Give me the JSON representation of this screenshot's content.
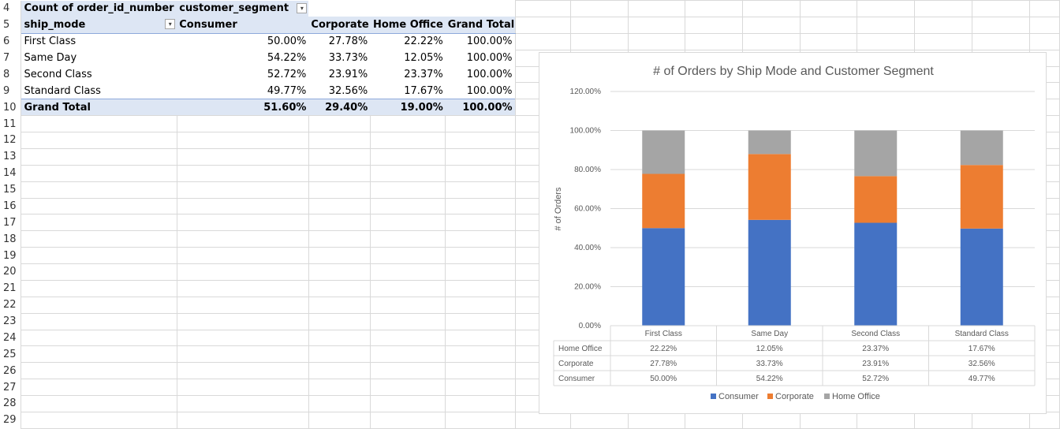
{
  "sheet": {
    "row_numbers": [
      "4",
      "5",
      "6",
      "7",
      "8",
      "9",
      "10",
      "11",
      "12",
      "13",
      "14",
      "15",
      "16",
      "17",
      "18",
      "19",
      "20",
      "21",
      "22",
      "23",
      "24",
      "25",
      "26",
      "27",
      "28",
      "29"
    ]
  },
  "pivot": {
    "values_field": "Count of order_id_number",
    "column_field": "customer_segment",
    "row_field": "ship_mode",
    "columns": [
      "Consumer",
      "Corporate",
      "Home Office",
      "Grand Total"
    ],
    "rows": [
      {
        "label": "First Class",
        "values": [
          "50.00%",
          "27.78%",
          "22.22%",
          "100.00%"
        ]
      },
      {
        "label": "Same Day",
        "values": [
          "54.22%",
          "33.73%",
          "12.05%",
          "100.00%"
        ]
      },
      {
        "label": "Second Class",
        "values": [
          "52.72%",
          "23.91%",
          "23.37%",
          "100.00%"
        ]
      },
      {
        "label": "Standard Class",
        "values": [
          "49.77%",
          "32.56%",
          "17.67%",
          "100.00%"
        ]
      }
    ],
    "total": {
      "label": "Grand Total",
      "values": [
        "51.60%",
        "29.40%",
        "19.00%",
        "100.00%"
      ]
    }
  },
  "chart_data": {
    "type": "bar",
    "stacked": true,
    "title": "# of Orders by Ship Mode and Customer Segment",
    "ylabel": "# of Orders",
    "xlabel": "",
    "ylim": [
      0,
      120
    ],
    "yticks": [
      "0.00%",
      "20.00%",
      "40.00%",
      "60.00%",
      "80.00%",
      "100.00%",
      "120.00%"
    ],
    "categories": [
      "First Class",
      "Same Day",
      "Second Class",
      "Standard Class"
    ],
    "series": [
      {
        "name": "Consumer",
        "color": "#4472c4",
        "values": [
          50.0,
          54.22,
          52.72,
          49.77
        ],
        "labels": [
          "50.00%",
          "54.22%",
          "52.72%",
          "49.77%"
        ]
      },
      {
        "name": "Corporate",
        "color": "#ed7d31",
        "values": [
          27.78,
          33.73,
          23.91,
          32.56
        ],
        "labels": [
          "27.78%",
          "33.73%",
          "23.91%",
          "32.56%"
        ]
      },
      {
        "name": "Home Office",
        "color": "#a5a5a5",
        "values": [
          22.22,
          12.05,
          23.37,
          17.67
        ],
        "labels": [
          "22.22%",
          "12.05%",
          "23.37%",
          "17.67%"
        ]
      }
    ],
    "data_table_order": [
      "Home Office",
      "Corporate",
      "Consumer"
    ],
    "grid": true,
    "legend": "bottom"
  }
}
